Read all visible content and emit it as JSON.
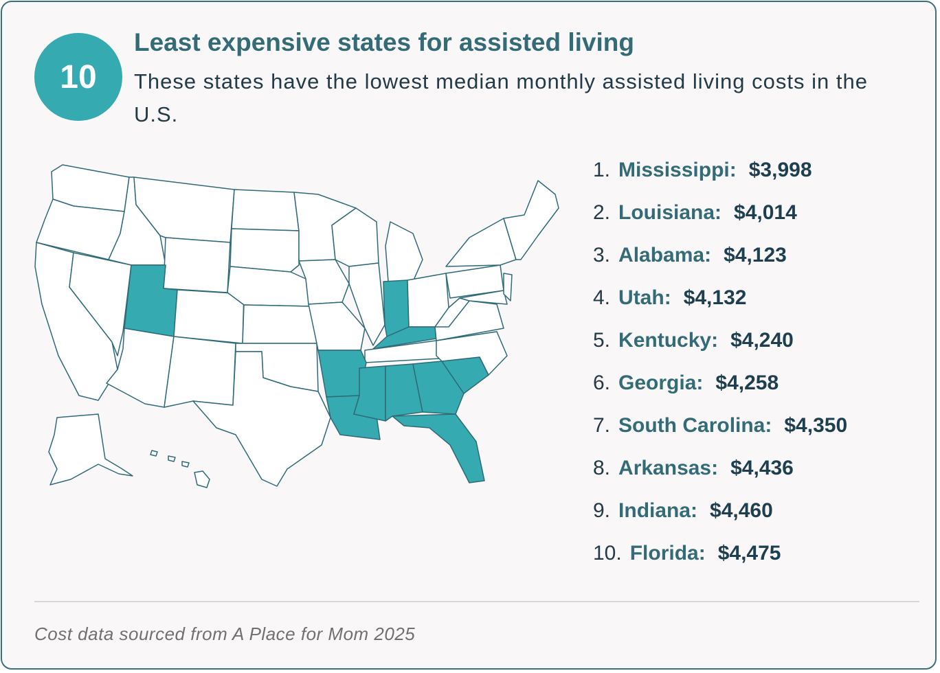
{
  "header": {
    "badge": "10",
    "title": "Least expensive states for assisted living",
    "subtitle": "These states have the lowest median monthly assisted living costs in the U.S."
  },
  "colors": {
    "highlight": "#35aab0",
    "state_fill": "#ffffff",
    "border": "#2f6a77",
    "title": "#336b77"
  },
  "map": {
    "highlighted_states": [
      "Mississippi",
      "Louisiana",
      "Alabama",
      "Utah",
      "Kentucky",
      "Georgia",
      "South Carolina",
      "Arkansas",
      "Indiana",
      "Florida"
    ]
  },
  "rankings": [
    {
      "rank": "1.",
      "state": "Mississippi:",
      "cost": "$3,998"
    },
    {
      "rank": "2.",
      "state": "Louisiana:",
      "cost": "$4,014"
    },
    {
      "rank": "3.",
      "state": "Alabama:",
      "cost": "$4,123"
    },
    {
      "rank": "4.",
      "state": "Utah:",
      "cost": "$4,132"
    },
    {
      "rank": "5.",
      "state": "Kentucky:",
      "cost": "$4,240"
    },
    {
      "rank": "6.",
      "state": "Georgia:",
      "cost": "$4,258"
    },
    {
      "rank": "7.",
      "state": "South Carolina:",
      "cost": "$4,350"
    },
    {
      "rank": "8.",
      "state": "Arkansas:",
      "cost": "$4,436"
    },
    {
      "rank": "9.",
      "state": "Indiana:",
      "cost": "$4,460"
    },
    {
      "rank": "10.",
      "state": "Florida:",
      "cost": "$4,475"
    }
  ],
  "footer": {
    "source": "Cost data sourced from A Place for Mom 2025"
  }
}
